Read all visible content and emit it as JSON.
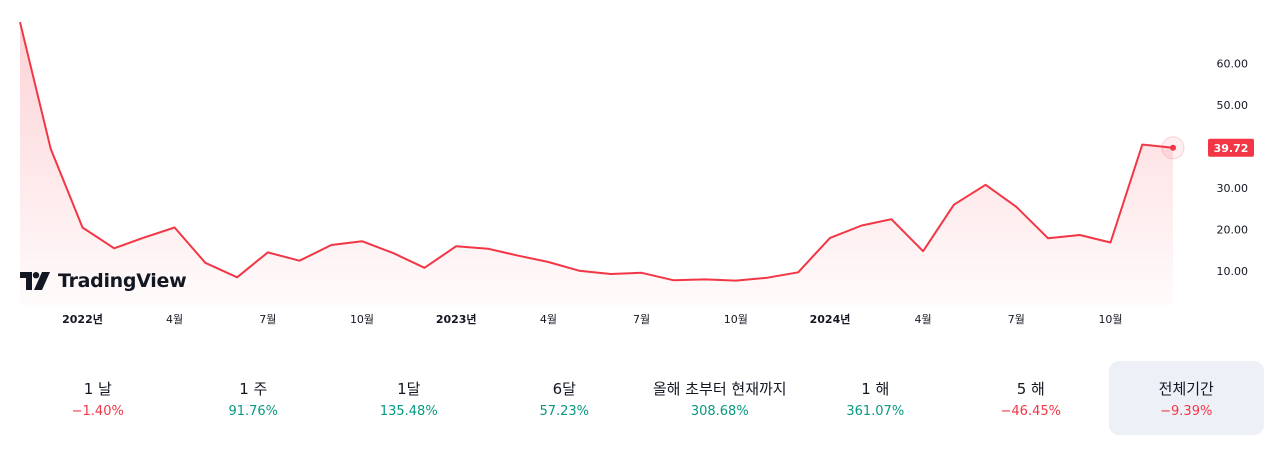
{
  "brand": {
    "name": "TradingView"
  },
  "colors": {
    "line": "#f23645",
    "positive": "#089981",
    "negative": "#f23645",
    "active_bg": "#eef0f8"
  },
  "chart_data": {
    "type": "area",
    "x": [
      "2021-11-01",
      "2021-12-01",
      "2022-01-01",
      "2022-02-01",
      "2022-03-01",
      "2022-04-01",
      "2022-05-01",
      "2022-06-01",
      "2022-07-01",
      "2022-08-01",
      "2022-09-01",
      "2022-10-01",
      "2022-11-01",
      "2022-12-01",
      "2023-01-01",
      "2023-02-01",
      "2023-03-01",
      "2023-04-01",
      "2023-05-01",
      "2023-06-01",
      "2023-07-01",
      "2023-08-01",
      "2023-09-01",
      "2023-10-01",
      "2023-11-01",
      "2023-12-01",
      "2024-01-01",
      "2024-02-01",
      "2024-03-01",
      "2024-04-01",
      "2024-05-01",
      "2024-06-01",
      "2024-07-01",
      "2024-08-01",
      "2024-09-01",
      "2024-10-01",
      "2024-11-01",
      "2024-12-01"
    ],
    "series": [
      {
        "values": [
          70.0,
          39.5,
          20.5,
          15.5,
          18.0,
          20.5,
          12.0,
          8.5,
          14.5,
          12.5,
          16.3,
          17.2,
          14.3,
          10.8,
          16.0,
          15.4,
          13.8,
          12.2,
          10.1,
          9.3,
          9.6,
          7.8,
          8.0,
          7.7,
          8.4,
          9.7,
          18.0,
          21.0,
          22.5,
          14.8,
          26.0,
          30.8,
          25.5,
          17.9,
          18.7,
          16.9,
          40.5,
          39.72
        ]
      }
    ],
    "x_tick_labels": [
      "2022년",
      "4월",
      "7월",
      "10월",
      "2023년",
      "4월",
      "7월",
      "10월",
      "2024년",
      "4월",
      "7월",
      "10월"
    ],
    "y_tick_labels": [
      "60.00",
      "50.00",
      "40.00",
      "30.00",
      "20.00",
      "10.00"
    ],
    "ylim": [
      4,
      71
    ],
    "last_value_label": "39.72",
    "grid": false
  },
  "periods": [
    {
      "label": "1 날",
      "value": "−1.40%",
      "trend": "neg",
      "active": false
    },
    {
      "label": "1 주",
      "value": "91.76%",
      "trend": "pos",
      "active": false
    },
    {
      "label": "1달",
      "value": "135.48%",
      "trend": "pos",
      "active": false
    },
    {
      "label": "6달",
      "value": "57.23%",
      "trend": "pos",
      "active": false
    },
    {
      "label": "올해 초부터 현재까지",
      "value": "308.68%",
      "trend": "pos",
      "active": false
    },
    {
      "label": "1 해",
      "value": "361.07%",
      "trend": "pos",
      "active": false
    },
    {
      "label": "5 해",
      "value": "−46.45%",
      "trend": "neg",
      "active": false
    },
    {
      "label": "전체기간",
      "value": "−9.39%",
      "trend": "neg",
      "active": true
    }
  ]
}
